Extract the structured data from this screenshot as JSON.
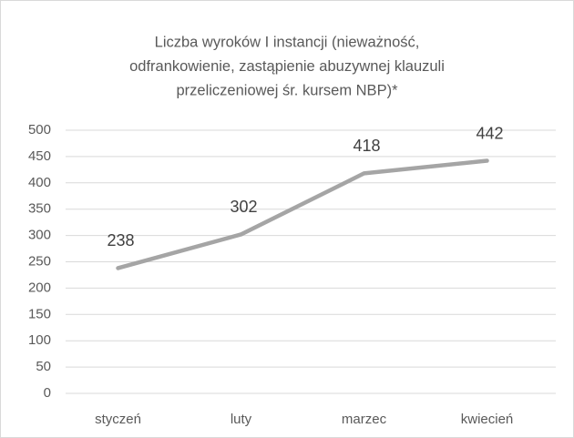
{
  "chart_data": {
    "type": "line",
    "title": [
      "Liczba wyroków I instancji (nieważność,",
      "odfrankowienie, zastąpienie abuzywnej klauzuli",
      "przeliczeniowej śr. kursem NBP)*"
    ],
    "categories": [
      "styczeń",
      "luty",
      "marzec",
      "kwiecień"
    ],
    "values": [
      238,
      302,
      418,
      442
    ],
    "color": "#a5a5a5",
    "ylim": [
      0,
      500
    ],
    "yticks": [
      0,
      50,
      100,
      150,
      200,
      250,
      300,
      350,
      400,
      450,
      500
    ],
    "grid": true
  }
}
